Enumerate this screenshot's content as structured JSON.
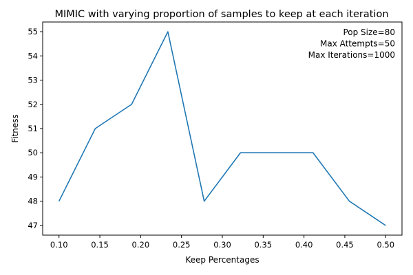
{
  "chart_data": {
    "type": "line",
    "title": "MIMIC with varying proportion of samples to keep at each iteration",
    "xlabel": "Keep Percentages",
    "ylabel": "Fitness",
    "xlim": [
      0.08,
      0.52
    ],
    "ylim": [
      46.6,
      55.4
    ],
    "xticks": [
      "0.10",
      "0.15",
      "0.20",
      "0.25",
      "0.30",
      "0.35",
      "0.40",
      "0.45",
      "0.50"
    ],
    "yticks": [
      "47",
      "48",
      "49",
      "50",
      "51",
      "52",
      "53",
      "54",
      "55"
    ],
    "grid": false,
    "series": [
      {
        "color": "#1f77b4",
        "x": [
          0.1,
          0.1444,
          0.1889,
          0.2333,
          0.2778,
          0.3222,
          0.3667,
          0.4111,
          0.4556,
          0.5
        ],
        "y": [
          48,
          51,
          52,
          55,
          48,
          50,
          50,
          50,
          48,
          47
        ]
      }
    ],
    "annotations": [
      "Pop Size=80",
      "Max Attempts=50",
      "Max Iterations=1000"
    ],
    "annotation_position": "top-right"
  }
}
